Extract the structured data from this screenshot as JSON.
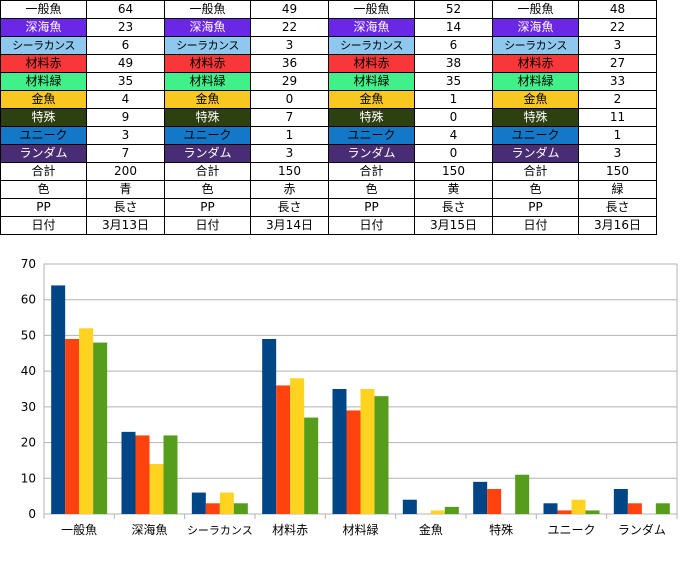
{
  "categories_style": {
    "一般魚": {
      "bg": "#ffffff",
      "fg": "#000000"
    },
    "深海魚": {
      "bg": "#6a28e6",
      "fg": "#ffffff"
    },
    "シーラカンス": {
      "bg": "#8ec8ee",
      "fg": "#000000"
    },
    "材料赤": {
      "bg": "#f83838",
      "fg": "#000000"
    },
    "材料緑": {
      "bg": "#40f088",
      "fg": "#000000"
    },
    "金魚": {
      "bg": "#f8c820",
      "fg": "#000000"
    },
    "特殊": {
      "bg": "#2c4010",
      "fg": "#ffffff"
    },
    "ユニーク": {
      "bg": "#1478c8",
      "fg": "#000000"
    },
    "ランダム": {
      "bg": "#482c74",
      "fg": "#ffffff"
    }
  },
  "blocks": [
    {
      "rows": [
        [
          "一般魚",
          "64"
        ],
        [
          "深海魚",
          "23"
        ],
        [
          "シーラカンス",
          "6"
        ],
        [
          "材料赤",
          "49"
        ],
        [
          "材料緑",
          "35"
        ],
        [
          "金魚",
          "4"
        ],
        [
          "特殊",
          "9"
        ],
        [
          "ユニーク",
          "3"
        ],
        [
          "ランダム",
          "7"
        ],
        [
          "合計",
          "200"
        ],
        [
          "色",
          "青"
        ],
        [
          "PP",
          "長さ"
        ],
        [
          "日付",
          "3月13日"
        ]
      ]
    },
    {
      "rows": [
        [
          "一般魚",
          "49"
        ],
        [
          "深海魚",
          "22"
        ],
        [
          "シーラカンス",
          "3"
        ],
        [
          "材料赤",
          "36"
        ],
        [
          "材料緑",
          "29"
        ],
        [
          "金魚",
          "0"
        ],
        [
          "特殊",
          "7"
        ],
        [
          "ユニーク",
          "1"
        ],
        [
          "ランダム",
          "3"
        ],
        [
          "合計",
          "150"
        ],
        [
          "色",
          "赤"
        ],
        [
          "PP",
          "長さ"
        ],
        [
          "日付",
          "3月14日"
        ]
      ]
    },
    {
      "rows": [
        [
          "一般魚",
          "52"
        ],
        [
          "深海魚",
          "14"
        ],
        [
          "シーラカンス",
          "6"
        ],
        [
          "材料赤",
          "38"
        ],
        [
          "材料緑",
          "35"
        ],
        [
          "金魚",
          "1"
        ],
        [
          "特殊",
          "0"
        ],
        [
          "ユニーク",
          "4"
        ],
        [
          "ランダム",
          "0"
        ],
        [
          "合計",
          "150"
        ],
        [
          "色",
          "黄"
        ],
        [
          "PP",
          "長さ"
        ],
        [
          "日付",
          "3月15日"
        ]
      ]
    },
    {
      "rows": [
        [
          "一般魚",
          "48"
        ],
        [
          "深海魚",
          "22"
        ],
        [
          "シーラカンス",
          "3"
        ],
        [
          "材料赤",
          "27"
        ],
        [
          "材料緑",
          "33"
        ],
        [
          "金魚",
          "2"
        ],
        [
          "特殊",
          "11"
        ],
        [
          "ユニーク",
          "1"
        ],
        [
          "ランダム",
          "3"
        ],
        [
          "合計",
          "150"
        ],
        [
          "色",
          "緑"
        ],
        [
          "PP",
          "長さ"
        ],
        [
          "日付",
          "3月16日"
        ]
      ]
    }
  ],
  "chart_data": {
    "type": "bar",
    "categories": [
      "一般魚",
      "深海魚",
      "シーラカンス",
      "材料赤",
      "材料緑",
      "金魚",
      "特殊",
      "ユニーク",
      "ランダム"
    ],
    "series": [
      {
        "color": "#004586",
        "values": [
          64,
          23,
          6,
          49,
          35,
          4,
          9,
          3,
          7
        ]
      },
      {
        "color": "#ff420e",
        "values": [
          49,
          22,
          3,
          36,
          29,
          0,
          7,
          1,
          3
        ]
      },
      {
        "color": "#ffd320",
        "values": [
          52,
          14,
          6,
          38,
          35,
          1,
          0,
          4,
          0
        ]
      },
      {
        "color": "#579d1c",
        "values": [
          48,
          22,
          3,
          27,
          33,
          2,
          11,
          1,
          3
        ]
      }
    ],
    "ylim": [
      0,
      70
    ],
    "yticks": [
      "0",
      "10",
      "20",
      "30",
      "40",
      "50",
      "60",
      "70"
    ],
    "grid": true,
    "legend": "none"
  }
}
